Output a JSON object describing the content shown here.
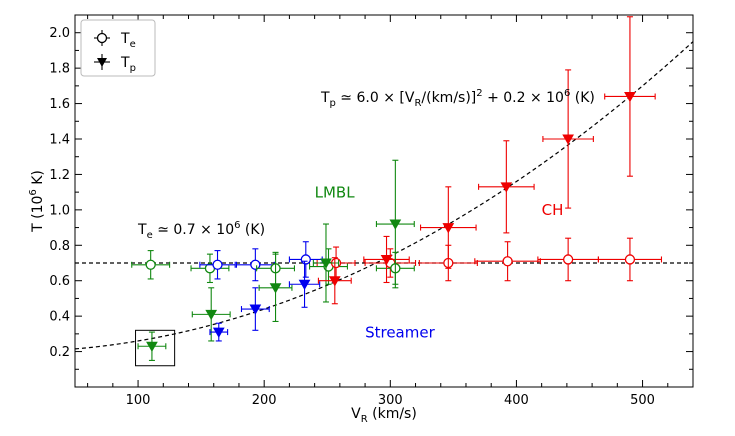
{
  "chart_data": {
    "type": "scatter",
    "xlabel_main": "V",
    "xlabel_sub": "R",
    "xlabel_rest": " (km/s)",
    "ylabel_main": "T (10",
    "ylabel_sup": "6",
    "ylabel_rest": " K)",
    "xlim": [
      50,
      540
    ],
    "ylim": [
      0.0,
      2.1
    ],
    "xticks": [
      100,
      200,
      300,
      400,
      500
    ],
    "xtick_labels": [
      "100",
      "200",
      "300",
      "400",
      "500"
    ],
    "yticks": [
      0.2,
      0.4,
      0.6,
      0.8,
      1.0,
      1.2,
      1.4,
      1.6,
      1.8,
      2.0
    ],
    "ytick_labels": [
      "0.2",
      "0.4",
      "0.6",
      "0.8",
      "1.0",
      "1.2",
      "1.4",
      "1.6",
      "1.8",
      "2.0"
    ],
    "grid": false,
    "legend": {
      "placement": "top-left",
      "entries": [
        {
          "marker": "open-circle",
          "label_main": "T",
          "label_sub": "e"
        },
        {
          "marker": "filled-triangle-down",
          "label_main": "T",
          "label_sub": "p"
        }
      ]
    },
    "colors": {
      "Streamer": "#0000ee",
      "LMBL": "#118811",
      "CH": "#ee0000",
      "fit": "#000000"
    },
    "region_labels": [
      {
        "text": "LMBL",
        "color": "#118811",
        "x": 240,
        "y": 1.07
      },
      {
        "text": "CH",
        "color": "#ee0000",
        "x": 420,
        "y": 0.97
      },
      {
        "text": "Streamer",
        "color": "#0000ee",
        "x": 280,
        "y": 0.28
      }
    ],
    "fit_label": {
      "parts": [
        "T",
        "p",
        " ≃ 6.0 × [V",
        "R",
        "/(km/s)]",
        "2",
        " + 0.2 × 10",
        "6",
        " (K)"
      ]
    },
    "te_label": {
      "parts": [
        "T",
        "e",
        " ≃ 0.7 × 10",
        "6",
        " (K)"
      ]
    },
    "fit_curve": {
      "formula": "Tp = 6.0e-6 * V^2 + 0.2"
    },
    "te_line": {
      "value": 0.7
    },
    "highlight_box": {
      "x_range": [
        98,
        129
      ],
      "y_range": [
        0.12,
        0.32
      ]
    },
    "te_points": [
      {
        "group": "LMBL",
        "x": 110,
        "y": 0.69,
        "xerr": 15,
        "yerr": 0.08
      },
      {
        "group": "LMBL",
        "x": 157,
        "y": 0.67,
        "xerr": 15,
        "yerr": 0.08
      },
      {
        "group": "Streamer",
        "x": 163,
        "y": 0.69,
        "xerr": 14,
        "yerr": 0.08
      },
      {
        "group": "Streamer",
        "x": 193,
        "y": 0.69,
        "xerr": 15,
        "yerr": 0.09
      },
      {
        "group": "LMBL",
        "x": 209,
        "y": 0.67,
        "xerr": 15,
        "yerr": 0.09
      },
      {
        "group": "Streamer",
        "x": 233,
        "y": 0.72,
        "xerr": 13,
        "yerr": 0.1
      },
      {
        "group": "LMBL",
        "x": 251,
        "y": 0.68,
        "xerr": 15,
        "yerr": 0.1
      },
      {
        "group": "CH",
        "x": 257,
        "y": 0.7,
        "xerr": 15,
        "yerr": 0.09
      },
      {
        "group": "CH",
        "x": 300,
        "y": 0.7,
        "xerr": 20,
        "yerr": 0.08
      },
      {
        "group": "LMBL",
        "x": 304,
        "y": 0.67,
        "xerr": 15,
        "yerr": 0.09
      },
      {
        "group": "CH",
        "x": 346,
        "y": 0.7,
        "xerr": 23,
        "yerr": 0.1
      },
      {
        "group": "CH",
        "x": 393,
        "y": 0.71,
        "xerr": 26,
        "yerr": 0.11
      },
      {
        "group": "CH",
        "x": 441,
        "y": 0.72,
        "xerr": 24,
        "yerr": 0.12
      },
      {
        "group": "CH",
        "x": 490,
        "y": 0.72,
        "xerr": 25,
        "yerr": 0.12
      }
    ],
    "tp_points": [
      {
        "group": "LMBL",
        "x": 111,
        "y": 0.23,
        "xerr": 11,
        "yerr": 0.08
      },
      {
        "group": "LMBL",
        "x": 158,
        "y": 0.41,
        "xerr": 15,
        "yerr": 0.15
      },
      {
        "group": "Streamer",
        "x": 164,
        "y": 0.31,
        "xerr": 7,
        "yerr": 0.05
      },
      {
        "group": "Streamer",
        "x": 193,
        "y": 0.44,
        "xerr": 11,
        "yerr": 0.12
      },
      {
        "group": "LMBL",
        "x": 209,
        "y": 0.56,
        "xerr": 13,
        "yerr": 0.19
      },
      {
        "group": "Streamer",
        "x": 232,
        "y": 0.58,
        "xerr": 12,
        "yerr": 0.13
      },
      {
        "group": "LMBL",
        "x": 249,
        "y": 0.7,
        "xerr": 10,
        "yerr": 0.22
      },
      {
        "group": "CH",
        "x": 256,
        "y": 0.6,
        "xerr": 13,
        "yerr": 0.13
      },
      {
        "group": "CH",
        "x": 297,
        "y": 0.72,
        "xerr": 18,
        "yerr": 0.13
      },
      {
        "group": "LMBL",
        "x": 304,
        "y": 0.92,
        "xerr": 15,
        "yerr": 0.36
      },
      {
        "group": "CH",
        "x": 346,
        "y": 0.9,
        "xerr": 22,
        "yerr": 0.23
      },
      {
        "group": "CH",
        "x": 392,
        "y": 1.13,
        "xerr": 22,
        "yerr": 0.26
      },
      {
        "group": "CH",
        "x": 441,
        "y": 1.4,
        "xerr": 20,
        "yerr": 0.39
      },
      {
        "group": "CH",
        "x": 490,
        "y": 1.64,
        "xerr": 20,
        "yerr": 0.45
      }
    ]
  }
}
